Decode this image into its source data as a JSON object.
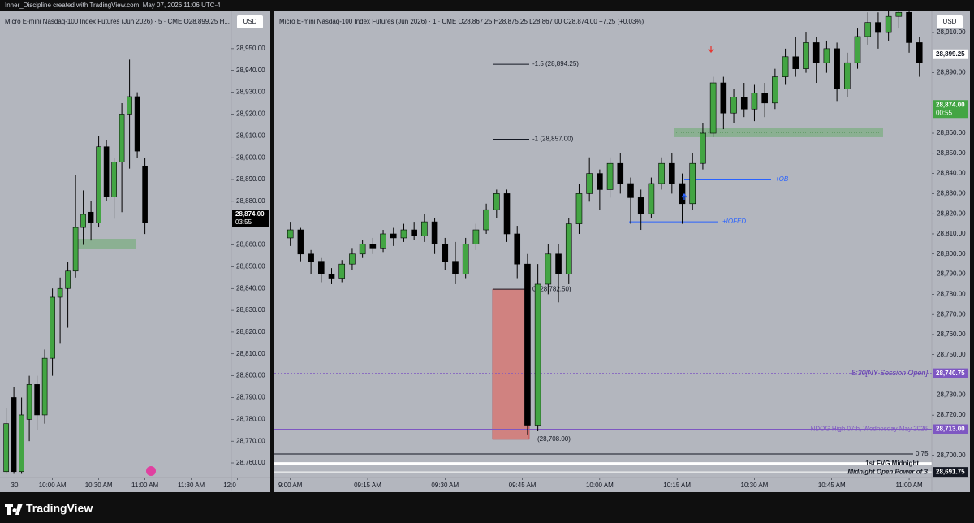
{
  "header": {
    "credit": "Inner_Discipline created with TradingView.com, May 07, 2026 11:06 UTC-4"
  },
  "footer": {
    "brand": "TradingView"
  },
  "chart_data": [
    {
      "type": "candlestick",
      "title": "Micro E-mini Nasdaq-100 Index Futures (Jun 2026) · 5 · CME  O28,899.25  H...",
      "currency": "USD",
      "x": [
        30,
        35,
        40,
        45,
        50,
        55,
        60,
        65,
        70,
        75,
        80,
        85,
        90,
        95,
        100,
        105,
        110,
        115,
        120
      ],
      "open": [
        28756,
        28790,
        28756,
        28780,
        28796,
        28782,
        28808,
        28836,
        28840,
        28848,
        28868,
        28875,
        28870,
        28905,
        28882,
        28898,
        28920,
        28928,
        28896
      ],
      "high": [
        28785,
        28795,
        28790,
        28800,
        28800,
        28812,
        28840,
        28845,
        28852,
        28892,
        28885,
        28880,
        28910,
        28908,
        28900,
        28925,
        28945,
        28930,
        28900
      ],
      "low": [
        28755,
        28755,
        28755,
        28770,
        28775,
        28778,
        28800,
        28815,
        28822,
        28845,
        28860,
        28862,
        28868,
        28880,
        28872,
        28875,
        28895,
        28900,
        28865
      ],
      "close": [
        28778,
        28756,
        28782,
        28796,
        28782,
        28808,
        28836,
        28840,
        28848,
        28868,
        28874,
        28870,
        28905,
        28882,
        28898,
        28920,
        28928,
        28903,
        28870
      ],
      "up_color": "#43a543",
      "down_color": "#000000",
      "xlim": [
        26,
        176
      ],
      "xticks": [
        {
          "value": 30,
          "label": "30"
        },
        {
          "value": 60,
          "label": "10:00 AM"
        },
        {
          "value": 90,
          "label": "10:30 AM"
        },
        {
          "value": 120,
          "label": "11:00 AM"
        },
        {
          "value": 150,
          "label": "11:30 AM"
        },
        {
          "value": 180,
          "label": "12:0"
        }
      ],
      "ylim": [
        28753.3,
        28967.1
      ],
      "yticks": [
        {
          "value": 28760,
          "label": "28,760.00"
        },
        {
          "value": 28770,
          "label": "28,770.00"
        },
        {
          "value": 28780,
          "label": "28,780.00"
        },
        {
          "value": 28790,
          "label": "28,790.00"
        },
        {
          "value": 28800,
          "label": "28,800.00"
        },
        {
          "value": 28810,
          "label": "28,810.00"
        },
        {
          "value": 28820,
          "label": "28,820.00"
        },
        {
          "value": 28830,
          "label": "28,830.00"
        },
        {
          "value": 28840,
          "label": "28,840.00"
        },
        {
          "value": 28850,
          "label": "28,850.00"
        },
        {
          "value": 28860,
          "label": "28,860.00"
        },
        {
          "value": 28880,
          "label": "28,880.00"
        },
        {
          "value": 28890,
          "label": "28,890.00"
        },
        {
          "value": 28900,
          "label": "28,900.00"
        },
        {
          "value": 28910,
          "label": "28,910.00"
        },
        {
          "value": 28920,
          "label": "28,920.00"
        },
        {
          "value": 28930,
          "label": "28,930.00"
        },
        {
          "value": 28940,
          "label": "28,940.00"
        },
        {
          "value": 28950,
          "label": "28,950.00"
        }
      ],
      "zones": [
        {
          "low": 28858,
          "high": 28862.8
        }
      ],
      "annotations": [],
      "price_badges": [
        {
          "value": 28874,
          "label": "28,874.00",
          "countdown": "03:55",
          "color": "#000000"
        }
      ]
    },
    {
      "type": "candlestick",
      "title": "Micro E-mini Nasdaq-100 Index Futures (Jun 2026) · 1 · CME  O28,867.25  H28,875.25  L28,867.00  C28,874.00  +7.25 (+0.03%)",
      "currency": "USD",
      "x": [
        0,
        2,
        4,
        6,
        8,
        10,
        12,
        14,
        16,
        18,
        20,
        22,
        24,
        26,
        28,
        30,
        32,
        34,
        36,
        38,
        40,
        42,
        44,
        46,
        48,
        50,
        52,
        54,
        56,
        58,
        60,
        62,
        64,
        66,
        68,
        70,
        72,
        74,
        76,
        78,
        80,
        82,
        84,
        86,
        88,
        90,
        92,
        94,
        96,
        98,
        100,
        102,
        104,
        106,
        108,
        110,
        112,
        114,
        116,
        118,
        120,
        122
      ],
      "open": [
        28808,
        28812,
        28800,
        28796,
        28790,
        28788,
        28795,
        28800,
        28805,
        28803,
        28810,
        28808,
        28812,
        28809,
        28816,
        28805,
        28796,
        28790,
        28805,
        28812,
        28822,
        28830,
        28810,
        28795,
        28715,
        28785,
        28800,
        28790,
        28815,
        28830,
        28840,
        28832,
        28845,
        28835,
        28828,
        28820,
        28835,
        28845,
        28835,
        28825,
        28845,
        28860,
        28885,
        28870,
        28878,
        28872,
        28880,
        28875,
        28888,
        28898,
        28892,
        28905,
        28895,
        28902,
        28882,
        28895,
        28908,
        28915,
        28910,
        28918,
        28920,
        28905
      ],
      "high": [
        28816,
        28813,
        28802,
        28798,
        28793,
        28797,
        28803,
        28807,
        28808,
        28812,
        28813,
        28815,
        28816,
        28820,
        28818,
        28808,
        28806,
        28808,
        28815,
        28825,
        28832,
        28832,
        28814,
        28800,
        28795,
        28805,
        28805,
        28818,
        28835,
        28848,
        28842,
        28848,
        28850,
        28838,
        28832,
        28838,
        28848,
        28850,
        28840,
        28850,
        28865,
        28888,
        28888,
        28882,
        28885,
        28884,
        28885,
        28892,
        28902,
        28908,
        28910,
        28908,
        28906,
        28905,
        28900,
        28912,
        28920,
        28920,
        28922,
        28924,
        28922,
        28908
      ],
      "low": [
        28804,
        28796,
        28790,
        28786,
        28785,
        28786,
        28792,
        28798,
        28800,
        28801,
        28804,
        28806,
        28807,
        28806,
        28800,
        28792,
        28785,
        28788,
        28802,
        28810,
        28818,
        28806,
        28788,
        28710,
        28712,
        28780,
        28776,
        28785,
        28810,
        28826,
        28822,
        28828,
        28830,
        28815,
        28812,
        28818,
        28832,
        28830,
        28815,
        28822,
        28842,
        28858,
        28862,
        28865,
        28868,
        28866,
        28868,
        28872,
        28884,
        28888,
        28890,
        28885,
        28890,
        28876,
        28878,
        28892,
        28904,
        28902,
        28906,
        28912,
        28900,
        28888
      ],
      "close": [
        28812,
        28800,
        28796,
        28790,
        28788,
        28795,
        28800,
        28805,
        28803,
        28810,
        28808,
        28812,
        28809,
        28816,
        28805,
        28796,
        28790,
        28805,
        28812,
        28822,
        28830,
        28810,
        28795,
        28715,
        28785,
        28800,
        28790,
        28815,
        28830,
        28840,
        28832,
        28845,
        28835,
        28828,
        28820,
        28835,
        28845,
        28835,
        28825,
        28845,
        28860,
        28885,
        28870,
        28878,
        28872,
        28880,
        28875,
        28888,
        28898,
        28892,
        28905,
        28895,
        28902,
        28882,
        28895,
        28908,
        28915,
        28910,
        28918,
        28920,
        28905,
        28895
      ],
      "up_color": "#43a543",
      "down_color": "#000000",
      "xlim": [
        -3.1,
        124.4
      ],
      "xticks": [
        {
          "value": 0,
          "label": "9:00 AM"
        },
        {
          "value": 15,
          "label": "09:15 AM"
        },
        {
          "value": 30,
          "label": "09:30 AM"
        },
        {
          "value": 45,
          "label": "09:45 AM"
        },
        {
          "value": 60,
          "label": "10:00 AM"
        },
        {
          "value": 75,
          "label": "10:15 AM"
        },
        {
          "value": 90,
          "label": "10:30 AM"
        },
        {
          "value": 105,
          "label": "10:45 AM"
        },
        {
          "value": 120,
          "label": "11:00 AM"
        }
      ],
      "ylim": [
        28689,
        28920.5
      ],
      "yticks": [
        {
          "value": 28910,
          "label": "28,910.00"
        },
        {
          "value": 28890,
          "label": "28,890.00"
        },
        {
          "value": 28860,
          "label": "28,860.00"
        },
        {
          "value": 28850,
          "label": "28,850.00"
        },
        {
          "value": 28840,
          "label": "28,840.00"
        },
        {
          "value": 28830,
          "label": "28,830.00"
        },
        {
          "value": 28820,
          "label": "28,820.00"
        },
        {
          "value": 28810,
          "label": "28,810.00"
        },
        {
          "value": 28800,
          "label": "28,800.00"
        },
        {
          "value": 28790,
          "label": "28,790.00"
        },
        {
          "value": 28780,
          "label": "28,780.00"
        },
        {
          "value": 28770,
          "label": "28,770.00"
        },
        {
          "value": 28760,
          "label": "28,760.00"
        },
        {
          "value": 28750,
          "label": "28,750.00"
        },
        {
          "value": 28730,
          "label": "28,730.00"
        },
        {
          "value": 28720,
          "label": "28,720.00"
        },
        {
          "value": 28700,
          "label": "28,700.00"
        }
      ],
      "zones": [
        {
          "low": 28858,
          "high": 28862.8
        }
      ],
      "box": {
        "top": 28782.5,
        "bottom": 28708
      },
      "annotations": [
        {
          "value": 28894.25,
          "label": "-1.5 (28,894.25)"
        },
        {
          "value": 28857,
          "label": "-1 (28,857.00)"
        },
        {
          "value": 28782.5,
          "label": "0 (28,782.50)"
        },
        {
          "value": 28708,
          "label": "(28,708.00)"
        },
        {
          "value": 28837,
          "label": "+OB"
        },
        {
          "value": 28816,
          "label": "+IOFED"
        },
        {
          "value": 28740.75,
          "label": "8:30[NY Session Open]"
        },
        {
          "value": 28713,
          "label": "NDOG High 07th, Wednesday May 2026"
        },
        {
          "value": 28700.7,
          "label": "0.75"
        },
        {
          "value": 28696,
          "label": "1st FVG Midnight"
        },
        {
          "value": 28691.75,
          "label": "Midnight Open Power of 3"
        }
      ],
      "price_badges": [
        {
          "value": 28899.25,
          "label": "28,899.25",
          "color": "#ffffff"
        },
        {
          "value": 28874,
          "label": "28,874.00",
          "countdown": "00:55",
          "color": "#43a543"
        },
        {
          "value": 28740.75,
          "label": "28,740.75",
          "color": "#7e57c2"
        },
        {
          "value": 28713,
          "label": "28,713.00",
          "color": "#7e57c2"
        },
        {
          "value": 28691.75,
          "label": "28,691.75",
          "color": "#131722"
        }
      ]
    }
  ]
}
